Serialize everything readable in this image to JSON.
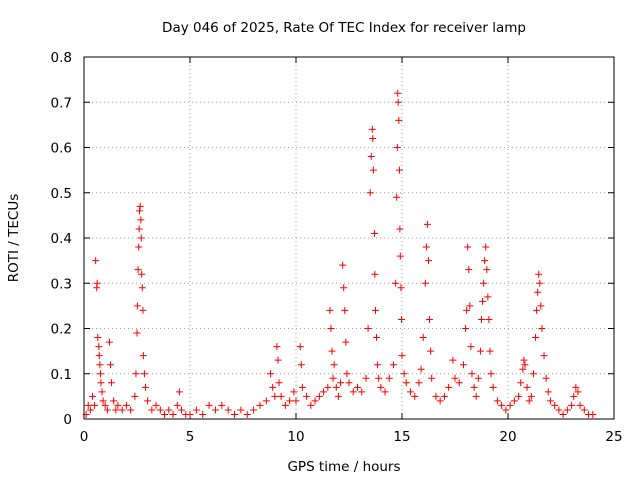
{
  "chart_data": {
    "type": "scatter",
    "title": "Day 046 of 2025, Rate Of TEC Index for receiver lamp",
    "xlabel": "GPS time / hours",
    "ylabel": "ROTI / TECUs",
    "xlim": [
      0,
      25
    ],
    "ylim": [
      0,
      0.8
    ],
    "xticks": [
      0,
      5,
      10,
      15,
      20,
      25
    ],
    "yticks": [
      0,
      0.1,
      0.2,
      0.3,
      0.4,
      0.5,
      0.6,
      0.7,
      0.8
    ],
    "xtick_labels": [
      "0",
      "5",
      "10",
      "15",
      "20",
      "25"
    ],
    "ytick_labels": [
      "0",
      "0.1",
      "0.2",
      "0.3",
      "0.4",
      "0.5",
      "0.6",
      "0.7",
      "0.8"
    ],
    "grid": true,
    "marker": "+",
    "marker_color": "#ff0000",
    "series": [
      {
        "name": "ROTI",
        "points": [
          [
            0.1,
            0.01
          ],
          [
            0.2,
            0.03
          ],
          [
            0.3,
            0.02
          ],
          [
            0.4,
            0.05
          ],
          [
            0.5,
            0.03
          ],
          [
            0.55,
            0.35
          ],
          [
            0.6,
            0.29
          ],
          [
            0.62,
            0.3
          ],
          [
            0.65,
            0.18
          ],
          [
            0.7,
            0.16
          ],
          [
            0.72,
            0.14
          ],
          [
            0.75,
            0.12
          ],
          [
            0.78,
            0.1
          ],
          [
            0.8,
            0.08
          ],
          [
            0.85,
            0.06
          ],
          [
            0.9,
            0.04
          ],
          [
            1.0,
            0.03
          ],
          [
            1.1,
            0.02
          ],
          [
            1.2,
            0.17
          ],
          [
            1.25,
            0.12
          ],
          [
            1.3,
            0.08
          ],
          [
            1.4,
            0.04
          ],
          [
            1.5,
            0.02
          ],
          [
            1.6,
            0.03
          ],
          [
            1.8,
            0.02
          ],
          [
            2.0,
            0.03
          ],
          [
            2.2,
            0.02
          ],
          [
            2.4,
            0.05
          ],
          [
            2.45,
            0.1
          ],
          [
            2.5,
            0.19
          ],
          [
            2.52,
            0.25
          ],
          [
            2.55,
            0.33
          ],
          [
            2.58,
            0.38
          ],
          [
            2.6,
            0.42
          ],
          [
            2.62,
            0.46
          ],
          [
            2.65,
            0.47
          ],
          [
            2.68,
            0.44
          ],
          [
            2.7,
            0.4
          ],
          [
            2.72,
            0.32
          ],
          [
            2.75,
            0.29
          ],
          [
            2.78,
            0.24
          ],
          [
            2.8,
            0.14
          ],
          [
            2.85,
            0.1
          ],
          [
            2.9,
            0.07
          ],
          [
            3.0,
            0.04
          ],
          [
            3.2,
            0.02
          ],
          [
            3.4,
            0.03
          ],
          [
            3.6,
            0.02
          ],
          [
            3.8,
            0.01
          ],
          [
            4.0,
            0.02
          ],
          [
            4.2,
            0.01
          ],
          [
            4.4,
            0.03
          ],
          [
            4.5,
            0.06
          ],
          [
            4.6,
            0.02
          ],
          [
            4.8,
            0.01
          ],
          [
            5.0,
            0.01
          ],
          [
            5.3,
            0.02
          ],
          [
            5.6,
            0.01
          ],
          [
            5.9,
            0.03
          ],
          [
            6.2,
            0.02
          ],
          [
            6.5,
            0.03
          ],
          [
            6.8,
            0.02
          ],
          [
            7.1,
            0.01
          ],
          [
            7.4,
            0.02
          ],
          [
            7.7,
            0.01
          ],
          [
            8.0,
            0.02
          ],
          [
            8.3,
            0.03
          ],
          [
            8.6,
            0.04
          ],
          [
            8.8,
            0.1
          ],
          [
            8.9,
            0.07
          ],
          [
            9.0,
            0.05
          ],
          [
            9.1,
            0.16
          ],
          [
            9.15,
            0.13
          ],
          [
            9.2,
            0.08
          ],
          [
            9.3,
            0.05
          ],
          [
            9.5,
            0.03
          ],
          [
            9.7,
            0.04
          ],
          [
            9.9,
            0.06
          ],
          [
            10.0,
            0.04
          ],
          [
            10.2,
            0.16
          ],
          [
            10.25,
            0.12
          ],
          [
            10.3,
            0.07
          ],
          [
            10.5,
            0.05
          ],
          [
            10.7,
            0.03
          ],
          [
            10.9,
            0.04
          ],
          [
            11.1,
            0.05
          ],
          [
            11.3,
            0.06
          ],
          [
            11.5,
            0.07
          ],
          [
            11.6,
            0.24
          ],
          [
            11.65,
            0.2
          ],
          [
            11.7,
            0.15
          ],
          [
            11.75,
            0.09
          ],
          [
            11.8,
            0.12
          ],
          [
            11.9,
            0.07
          ],
          [
            12.0,
            0.05
          ],
          [
            12.1,
            0.08
          ],
          [
            12.2,
            0.34
          ],
          [
            12.25,
            0.29
          ],
          [
            12.3,
            0.24
          ],
          [
            12.35,
            0.17
          ],
          [
            12.4,
            0.1
          ],
          [
            12.5,
            0.08
          ],
          [
            12.7,
            0.06
          ],
          [
            12.9,
            0.07
          ],
          [
            13.1,
            0.06
          ],
          [
            13.3,
            0.09
          ],
          [
            13.4,
            0.2
          ],
          [
            13.5,
            0.5
          ],
          [
            13.55,
            0.58
          ],
          [
            13.6,
            0.64
          ],
          [
            13.62,
            0.62
          ],
          [
            13.65,
            0.55
          ],
          [
            13.7,
            0.41
          ],
          [
            13.72,
            0.32
          ],
          [
            13.75,
            0.24
          ],
          [
            13.8,
            0.18
          ],
          [
            13.85,
            0.12
          ],
          [
            13.9,
            0.09
          ],
          [
            14.0,
            0.07
          ],
          [
            14.2,
            0.06
          ],
          [
            14.4,
            0.09
          ],
          [
            14.6,
            0.12
          ],
          [
            14.7,
            0.3
          ],
          [
            14.75,
            0.49
          ],
          [
            14.78,
            0.6
          ],
          [
            14.8,
            0.72
          ],
          [
            14.82,
            0.7
          ],
          [
            14.85,
            0.66
          ],
          [
            14.88,
            0.55
          ],
          [
            14.9,
            0.42
          ],
          [
            14.92,
            0.36
          ],
          [
            14.95,
            0.29
          ],
          [
            14.98,
            0.22
          ],
          [
            15.0,
            0.14
          ],
          [
            15.1,
            0.1
          ],
          [
            15.2,
            0.08
          ],
          [
            15.4,
            0.06
          ],
          [
            15.6,
            0.05
          ],
          [
            15.8,
            0.08
          ],
          [
            15.9,
            0.11
          ],
          [
            16.0,
            0.18
          ],
          [
            16.1,
            0.3
          ],
          [
            16.15,
            0.38
          ],
          [
            16.2,
            0.43
          ],
          [
            16.25,
            0.35
          ],
          [
            16.3,
            0.22
          ],
          [
            16.35,
            0.15
          ],
          [
            16.4,
            0.09
          ],
          [
            16.6,
            0.05
          ],
          [
            16.8,
            0.04
          ],
          [
            17.0,
            0.05
          ],
          [
            17.2,
            0.07
          ],
          [
            17.4,
            0.13
          ],
          [
            17.5,
            0.09
          ],
          [
            17.7,
            0.08
          ],
          [
            17.9,
            0.12
          ],
          [
            18.0,
            0.2
          ],
          [
            18.05,
            0.24
          ],
          [
            18.1,
            0.38
          ],
          [
            18.15,
            0.33
          ],
          [
            18.2,
            0.25
          ],
          [
            18.25,
            0.16
          ],
          [
            18.3,
            0.1
          ],
          [
            18.4,
            0.07
          ],
          [
            18.5,
            0.05
          ],
          [
            18.6,
            0.09
          ],
          [
            18.7,
            0.15
          ],
          [
            18.75,
            0.22
          ],
          [
            18.8,
            0.26
          ],
          [
            18.85,
            0.3
          ],
          [
            18.9,
            0.35
          ],
          [
            18.95,
            0.38
          ],
          [
            19.0,
            0.33
          ],
          [
            19.05,
            0.27
          ],
          [
            19.1,
            0.22
          ],
          [
            19.15,
            0.15
          ],
          [
            19.2,
            0.1
          ],
          [
            19.3,
            0.07
          ],
          [
            19.5,
            0.04
          ],
          [
            19.7,
            0.03
          ],
          [
            19.9,
            0.02
          ],
          [
            20.1,
            0.03
          ],
          [
            20.3,
            0.04
          ],
          [
            20.5,
            0.05
          ],
          [
            20.6,
            0.08
          ],
          [
            20.7,
            0.11
          ],
          [
            20.75,
            0.13
          ],
          [
            20.8,
            0.12
          ],
          [
            20.9,
            0.07
          ],
          [
            21.0,
            0.04
          ],
          [
            21.1,
            0.05
          ],
          [
            21.2,
            0.1
          ],
          [
            21.3,
            0.18
          ],
          [
            21.35,
            0.24
          ],
          [
            21.4,
            0.28
          ],
          [
            21.45,
            0.32
          ],
          [
            21.5,
            0.3
          ],
          [
            21.55,
            0.25
          ],
          [
            21.6,
            0.2
          ],
          [
            21.7,
            0.14
          ],
          [
            21.8,
            0.09
          ],
          [
            21.9,
            0.06
          ],
          [
            22.0,
            0.04
          ],
          [
            22.2,
            0.03
          ],
          [
            22.4,
            0.02
          ],
          [
            22.6,
            0.01
          ],
          [
            22.8,
            0.02
          ],
          [
            23.0,
            0.03
          ],
          [
            23.1,
            0.05
          ],
          [
            23.2,
            0.07
          ],
          [
            23.3,
            0.06
          ],
          [
            23.4,
            0.03
          ],
          [
            23.6,
            0.02
          ],
          [
            23.8,
            0.01
          ],
          [
            24.0,
            0.01
          ]
        ]
      }
    ]
  }
}
